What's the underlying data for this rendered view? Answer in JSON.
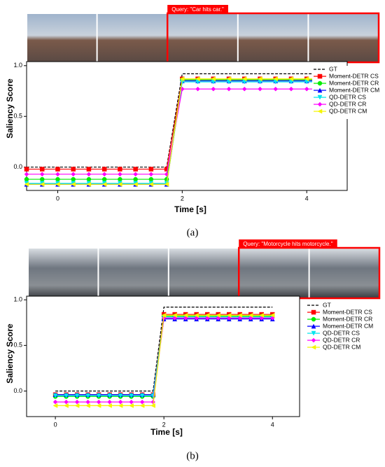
{
  "chart_data": [
    {
      "type": "line",
      "query": "Query: \"Car hits car.\"",
      "caption": "(a)",
      "xlabel": "Time [s]",
      "ylabel": "Saliency Score",
      "xlim": [
        -0.5,
        4.65
      ],
      "ylim": [
        -0.23,
        1.04
      ],
      "xticks": [
        0,
        2,
        4
      ],
      "yticks": [
        {
          "value": 0,
          "label": "0.0"
        },
        {
          "value": 0.5,
          "label": "0.5"
        },
        {
          "value": 1,
          "label": "1.0"
        }
      ],
      "legend": "upper right",
      "x": [
        -0.5,
        -0.25,
        0,
        0.25,
        0.5,
        0.75,
        1,
        1.25,
        1.5,
        1.75,
        2,
        2.25,
        2.5,
        2.75,
        3,
        3.25,
        3.5,
        3.75,
        4,
        4.25,
        4.5
      ],
      "series": [
        {
          "name": "GT",
          "color": "#000000",
          "marker": "none",
          "dashed": true,
          "values": [
            0,
            0,
            0,
            0,
            0,
            0,
            0,
            0,
            0,
            0,
            0.92,
            0.92,
            0.92,
            0.92,
            0.92,
            0.92,
            0.92,
            0.92,
            0.92,
            0.92,
            0.92
          ]
        },
        {
          "name": "Moment-DETR CS",
          "color": "#ff0000",
          "marker": "square",
          "values": [
            -0.02,
            -0.02,
            -0.02,
            -0.02,
            -0.02,
            -0.02,
            -0.02,
            -0.02,
            -0.02,
            -0.02,
            0.87,
            0.87,
            0.87,
            0.87,
            0.87,
            0.87,
            0.87,
            0.87,
            0.87,
            0.87,
            0.87
          ]
        },
        {
          "name": "Moment-DETR CR",
          "color": "#00ee00",
          "marker": "circle",
          "values": [
            -0.12,
            -0.12,
            -0.12,
            -0.12,
            -0.12,
            -0.12,
            -0.12,
            -0.12,
            -0.12,
            -0.12,
            0.86,
            0.86,
            0.86,
            0.86,
            0.86,
            0.86,
            0.86,
            0.86,
            0.86,
            0.86,
            0.86
          ]
        },
        {
          "name": "Moment-DETR CM",
          "color": "#0000ff",
          "marker": "triangle",
          "values": [
            -0.17,
            -0.17,
            -0.17,
            -0.17,
            -0.17,
            -0.17,
            -0.17,
            -0.17,
            -0.17,
            -0.17,
            0.85,
            0.85,
            0.85,
            0.85,
            0.85,
            0.85,
            0.85,
            0.85,
            0.85,
            0.85,
            0.85
          ]
        },
        {
          "name": "QD-DETR CS",
          "color": "#00e5ee",
          "marker": "down",
          "values": [
            -0.16,
            -0.16,
            -0.16,
            -0.16,
            -0.16,
            -0.16,
            -0.16,
            -0.16,
            -0.16,
            -0.16,
            0.84,
            0.84,
            0.84,
            0.84,
            0.84,
            0.84,
            0.84,
            0.84,
            0.84,
            0.84,
            0.84
          ]
        },
        {
          "name": "QD-DETR CR",
          "color": "#ff00ff",
          "marker": "diamond",
          "values": [
            -0.07,
            -0.07,
            -0.07,
            -0.07,
            -0.07,
            -0.07,
            -0.07,
            -0.07,
            -0.07,
            -0.07,
            0.77,
            0.77,
            0.77,
            0.77,
            0.77,
            0.77,
            0.77,
            0.77,
            0.77,
            0.77,
            0.77
          ]
        },
        {
          "name": "QD-DETR CM",
          "color": "#f5f500",
          "marker": "left",
          "values": [
            -0.17,
            -0.17,
            -0.17,
            -0.17,
            -0.17,
            -0.17,
            -0.17,
            -0.17,
            -0.17,
            -0.17,
            0.87,
            0.87,
            0.87,
            0.87,
            0.87,
            0.87,
            0.87,
            0.87,
            0.87,
            0.87,
            0.87
          ]
        }
      ]
    },
    {
      "type": "line",
      "query": "Query: \"Motorcycle hits motorcycle.\"",
      "caption": "(b)",
      "xlabel": "Time [s]",
      "ylabel": "Saliency Score",
      "xlim": [
        -0.53,
        4.5
      ],
      "ylim": [
        -0.28,
        1.04
      ],
      "xticks": [
        0,
        2,
        4
      ],
      "yticks": [
        {
          "value": 0,
          "label": "0.0"
        },
        {
          "value": 0.5,
          "label": "0.5"
        },
        {
          "value": 1,
          "label": "1.0"
        }
      ],
      "legend": "upper right",
      "x": [
        0,
        0.2,
        0.4,
        0.6,
        0.8,
        1,
        1.2,
        1.4,
        1.6,
        1.8,
        2,
        2.2,
        2.4,
        2.6,
        2.8,
        3,
        3.2,
        3.4,
        3.6,
        3.8,
        4
      ],
      "series": [
        {
          "name": "GT",
          "color": "#000000",
          "marker": "none",
          "dashed": true,
          "values": [
            0,
            0,
            0,
            0,
            0,
            0,
            0,
            0,
            0,
            0,
            0.92,
            0.92,
            0.92,
            0.92,
            0.92,
            0.92,
            0.92,
            0.92,
            0.92,
            0.92,
            0.92
          ]
        },
        {
          "name": "Moment-DETR CS",
          "color": "#ff0000",
          "marker": "square",
          "values": [
            -0.04,
            -0.04,
            -0.04,
            -0.04,
            -0.04,
            -0.04,
            -0.04,
            -0.04,
            -0.04,
            -0.04,
            0.84,
            0.84,
            0.84,
            0.84,
            0.84,
            0.84,
            0.84,
            0.84,
            0.84,
            0.84,
            0.84
          ]
        },
        {
          "name": "Moment-DETR CR",
          "color": "#00ee00",
          "marker": "circle",
          "values": [
            -0.06,
            -0.06,
            -0.06,
            -0.06,
            -0.06,
            -0.06,
            -0.06,
            -0.06,
            -0.06,
            -0.06,
            0.82,
            0.82,
            0.82,
            0.82,
            0.82,
            0.82,
            0.82,
            0.82,
            0.82,
            0.82,
            0.82
          ]
        },
        {
          "name": "Moment-DETR CM",
          "color": "#0000ff",
          "marker": "triangle",
          "values": [
            -0.04,
            -0.04,
            -0.04,
            -0.04,
            -0.04,
            -0.04,
            -0.04,
            -0.04,
            -0.04,
            -0.04,
            0.79,
            0.79,
            0.79,
            0.79,
            0.79,
            0.79,
            0.79,
            0.79,
            0.79,
            0.79,
            0.79
          ]
        },
        {
          "name": "QD-DETR CS",
          "color": "#00e5ee",
          "marker": "down",
          "values": [
            -0.05,
            -0.05,
            -0.05,
            -0.05,
            -0.05,
            -0.05,
            -0.05,
            -0.05,
            -0.05,
            -0.05,
            0.81,
            0.81,
            0.81,
            0.81,
            0.81,
            0.81,
            0.81,
            0.81,
            0.81,
            0.81,
            0.81
          ]
        },
        {
          "name": "QD-DETR CR",
          "color": "#ff00ff",
          "marker": "diamond",
          "values": [
            -0.12,
            -0.12,
            -0.12,
            -0.12,
            -0.12,
            -0.12,
            -0.12,
            -0.12,
            -0.12,
            -0.12,
            0.8,
            0.8,
            0.8,
            0.8,
            0.8,
            0.8,
            0.8,
            0.8,
            0.8,
            0.8,
            0.8
          ]
        },
        {
          "name": "QD-DETR CM",
          "color": "#f5f500",
          "marker": "left",
          "values": [
            -0.16,
            -0.16,
            -0.16,
            -0.16,
            -0.16,
            -0.16,
            -0.16,
            -0.16,
            -0.16,
            -0.16,
            0.83,
            0.83,
            0.83,
            0.83,
            0.83,
            0.83,
            0.83,
            0.83,
            0.83,
            0.83,
            0.83
          ]
        }
      ]
    }
  ]
}
